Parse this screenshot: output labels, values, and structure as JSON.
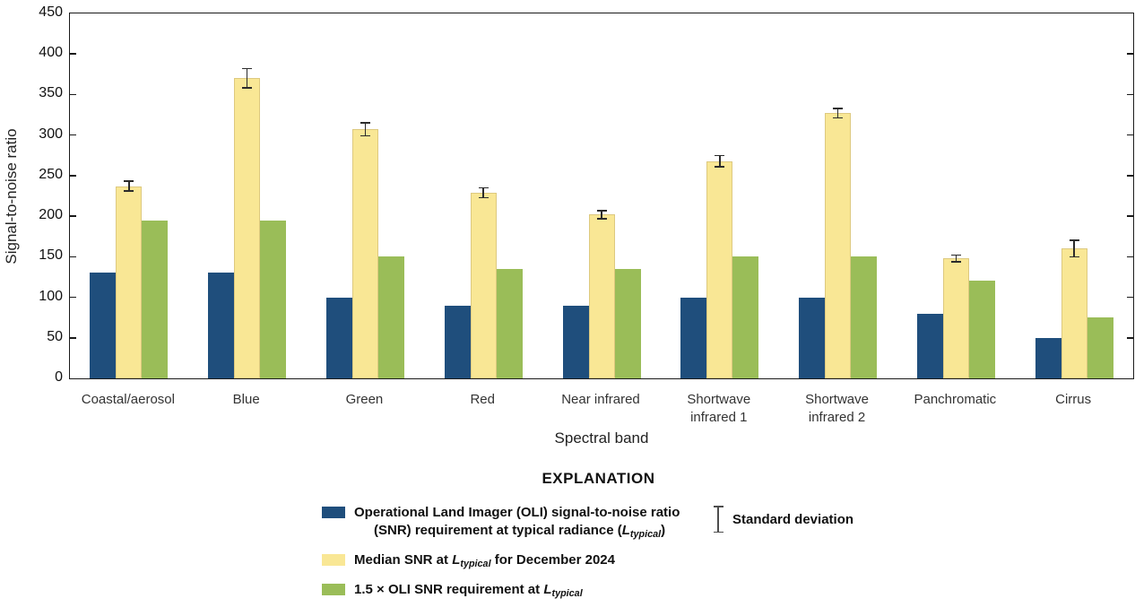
{
  "chart_data": {
    "type": "bar",
    "title": "",
    "xlabel": "Spectral band",
    "ylabel": "Signal-to-noise ratio",
    "ylim": [
      0,
      450
    ],
    "ytick_interval": 50,
    "grid": false,
    "legend_position": "bottom",
    "categories": [
      "Coastal/aerosol",
      "Blue",
      "Green",
      "Red",
      "Near infrared",
      "Shortwave\ninfrared 1",
      "Shortwave\ninfrared 2",
      "Panchromatic",
      "Cirrus"
    ],
    "series": [
      {
        "name": "Operational Land Imager (OLI) signal-to-noise ratio (SNR) requirement at typical radiance (Ltypical)",
        "color": "#1f4e7c",
        "values": [
          130,
          130,
          100,
          90,
          90,
          100,
          100,
          80,
          50
        ]
      },
      {
        "name": "Median SNR at Ltypical for December 2024",
        "color": "#f9e795",
        "border_color": "#ddc97f",
        "values": [
          237,
          370,
          307,
          229,
          202,
          268,
          327,
          148,
          160
        ],
        "errors": [
          6,
          12,
          8,
          6,
          5,
          7,
          6,
          4,
          10
        ],
        "error_label": "Standard deviation"
      },
      {
        "name": "1.5 × OLI SNR requirement at Ltypical",
        "color": "#9abd58",
        "values": [
          195,
          195,
          150,
          135,
          135,
          150,
          150,
          120,
          75
        ]
      }
    ]
  },
  "legend": {
    "title": "EXPLANATION",
    "items": [
      {
        "swatch": "#1f4e7c",
        "lines": [
          "Operational Land Imager (OLI) signal-to-noise ratio",
          "(SNR) requirement at typical radiance ({Ltypical})"
        ]
      },
      {
        "swatch": "#f9e795",
        "lines": [
          "Median SNR at {Ltypical} for December 2024"
        ]
      },
      {
        "swatch": "#9abd58",
        "lines": [
          "1.5 × OLI SNR requirement at {Ltypical}"
        ]
      }
    ],
    "std_label": "Standard deviation"
  }
}
